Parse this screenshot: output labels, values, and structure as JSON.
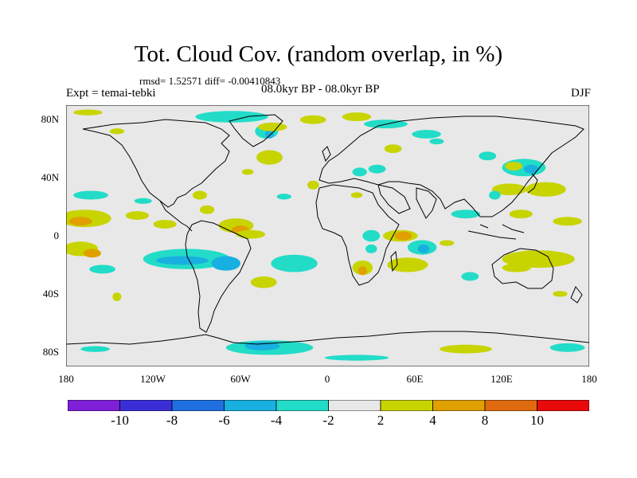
{
  "title": "Tot. Cloud Cov. (random overlap, in %)",
  "stats": "rmsd= 1.52571  diff= -0.00410843",
  "experiment": "Expt = temai-tebki",
  "period": "08.0kyr BP - 08.0kyr BP",
  "season": "DJF",
  "map": {
    "lon_range": [
      -180,
      180
    ],
    "lat_range": [
      -90,
      90
    ],
    "land_background": "#e8e8e8",
    "coastline_color": "#000000",
    "y_ticks": [
      {
        "lat": 80,
        "label": "80N"
      },
      {
        "lat": 40,
        "label": "40N"
      },
      {
        "lat": 0,
        "label": "0"
      },
      {
        "lat": -40,
        "label": "40S"
      },
      {
        "lat": -80,
        "label": "80S"
      }
    ],
    "x_ticks": [
      {
        "lon": -180,
        "label": "180"
      },
      {
        "lon": -120,
        "label": "120W"
      },
      {
        "lon": -60,
        "label": "60W"
      },
      {
        "lon": 0,
        "label": "0"
      },
      {
        "lon": 60,
        "label": "60E"
      },
      {
        "lon": 120,
        "label": "120E"
      },
      {
        "lon": 180,
        "label": "180"
      }
    ]
  },
  "colorbar": {
    "colors": [
      "#7f1fd8",
      "#3a2fd6",
      "#1f6fe0",
      "#18b0e0",
      "#22dcc8",
      "#e8e8e8",
      "#c8d400",
      "#e0a000",
      "#e06a10",
      "#e80a0a"
    ],
    "labels": [
      "-10",
      "-8",
      "-6",
      "-4",
      "-2",
      "2",
      "4",
      "8",
      "10"
    ]
  },
  "anomalies": [
    {
      "lon": -167,
      "lat": 12,
      "rx": 18,
      "ry": 6,
      "level": "2"
    },
    {
      "lon": -170,
      "lat": 10,
      "rx": 8,
      "ry": 3,
      "level": "4"
    },
    {
      "lon": -163,
      "lat": 28,
      "rx": 12,
      "ry": 3,
      "level": "-2"
    },
    {
      "lon": -127,
      "lat": 24,
      "rx": 6,
      "ry": 2,
      "level": "-2"
    },
    {
      "lon": -170,
      "lat": -9,
      "rx": 12,
      "ry": 5,
      "level": "2"
    },
    {
      "lon": -162,
      "lat": -12,
      "rx": 6,
      "ry": 3,
      "level": "4"
    },
    {
      "lon": -155,
      "lat": -23,
      "rx": 9,
      "ry": 3,
      "level": "-2"
    },
    {
      "lon": -145,
      "lat": -42,
      "rx": 3,
      "ry": 3,
      "level": "2"
    },
    {
      "lon": -165,
      "lat": 85,
      "rx": 10,
      "ry": 2,
      "level": "2"
    },
    {
      "lon": -145,
      "lat": 72,
      "rx": 5,
      "ry": 2,
      "level": "2"
    },
    {
      "lon": -131,
      "lat": 14,
      "rx": 8,
      "ry": 3,
      "level": "2"
    },
    {
      "lon": -112,
      "lat": 8,
      "rx": 8,
      "ry": 3,
      "level": "2"
    },
    {
      "lon": -97,
      "lat": -16,
      "rx": 30,
      "ry": 7,
      "level": "-2"
    },
    {
      "lon": -100,
      "lat": -17,
      "rx": 18,
      "ry": 3,
      "level": "-4"
    },
    {
      "lon": -70,
      "lat": -19,
      "rx": 10,
      "ry": 5,
      "level": "-4"
    },
    {
      "lon": -88,
      "lat": 28,
      "rx": 5,
      "ry": 3,
      "level": "2"
    },
    {
      "lon": -83,
      "lat": 18,
      "rx": 5,
      "ry": 3,
      "level": "2"
    },
    {
      "lon": -63,
      "lat": 7,
      "rx": 12,
      "ry": 5,
      "level": "2"
    },
    {
      "lon": -60,
      "lat": 4,
      "rx": 6,
      "ry": 3,
      "level": "4"
    },
    {
      "lon": -53,
      "lat": 1,
      "rx": 10,
      "ry": 3,
      "level": "2"
    },
    {
      "lon": -40,
      "lat": 54,
      "rx": 9,
      "ry": 5,
      "level": "2"
    },
    {
      "lon": -55,
      "lat": 44,
      "rx": 4,
      "ry": 2,
      "level": "2"
    },
    {
      "lon": -23,
      "lat": -19,
      "rx": 16,
      "ry": 6,
      "level": "-2"
    },
    {
      "lon": -44,
      "lat": -32,
      "rx": 9,
      "ry": 4,
      "level": "2"
    },
    {
      "lon": -30,
      "lat": 27,
      "rx": 5,
      "ry": 2,
      "level": "-2"
    },
    {
      "lon": -10,
      "lat": 35,
      "rx": 4,
      "ry": 3,
      "level": "2"
    },
    {
      "lon": -66,
      "lat": 82,
      "rx": 25,
      "ry": 4,
      "level": "-2"
    },
    {
      "lon": -42,
      "lat": 72,
      "rx": 8,
      "ry": 5,
      "level": "-2"
    },
    {
      "lon": -40,
      "lat": 70,
      "rx": 3,
      "ry": 3,
      "level": "-4"
    },
    {
      "lon": -38,
      "lat": 75,
      "rx": 10,
      "ry": 3,
      "level": "2"
    },
    {
      "lon": -10,
      "lat": 80,
      "rx": 9,
      "ry": 3,
      "level": "2"
    },
    {
      "lon": 20,
      "lat": 82,
      "rx": 10,
      "ry": 3,
      "level": "2"
    },
    {
      "lon": 40,
      "lat": 77,
      "rx": 15,
      "ry": 3,
      "level": "-2"
    },
    {
      "lon": 45,
      "lat": 60,
      "rx": 6,
      "ry": 3,
      "level": "2"
    },
    {
      "lon": 68,
      "lat": 70,
      "rx": 10,
      "ry": 3,
      "level": "-2"
    },
    {
      "lon": 22,
      "lat": 44,
      "rx": 5,
      "ry": 3,
      "level": "-2"
    },
    {
      "lon": 34,
      "lat": 46,
      "rx": 6,
      "ry": 3,
      "level": "-2"
    },
    {
      "lon": 20,
      "lat": 28,
      "rx": 4,
      "ry": 2,
      "level": "2"
    },
    {
      "lon": 30,
      "lat": 0,
      "rx": 6,
      "ry": 4,
      "level": "-2"
    },
    {
      "lon": 50,
      "lat": 0,
      "rx": 12,
      "ry": 4,
      "level": "2"
    },
    {
      "lon": 52,
      "lat": 0,
      "rx": 6,
      "ry": 3,
      "level": "4"
    },
    {
      "lon": 65,
      "lat": -8,
      "rx": 10,
      "ry": 5,
      "level": "-2"
    },
    {
      "lon": 66,
      "lat": -9,
      "rx": 4,
      "ry": 3,
      "level": "-4"
    },
    {
      "lon": 30,
      "lat": -9,
      "rx": 4,
      "ry": 3,
      "level": "-2"
    },
    {
      "lon": 24,
      "lat": -22,
      "rx": 7,
      "ry": 5,
      "level": "2"
    },
    {
      "lon": 24,
      "lat": -24,
      "rx": 3,
      "ry": 3,
      "level": "4"
    },
    {
      "lon": 55,
      "lat": -20,
      "rx": 14,
      "ry": 5,
      "level": "2"
    },
    {
      "lon": 82,
      "lat": -5,
      "rx": 5,
      "ry": 2,
      "level": "2"
    },
    {
      "lon": 75,
      "lat": 65,
      "rx": 5,
      "ry": 2,
      "level": "-2"
    },
    {
      "lon": 110,
      "lat": 55,
      "rx": 6,
      "ry": 3,
      "level": "-2"
    },
    {
      "lon": 135,
      "lat": 47,
      "rx": 15,
      "ry": 6,
      "level": "-2"
    },
    {
      "lon": 140,
      "lat": 46,
      "rx": 5,
      "ry": 3,
      "level": "-4"
    },
    {
      "lon": 128,
      "lat": 48,
      "rx": 6,
      "ry": 3,
      "level": "2"
    },
    {
      "lon": 125,
      "lat": 32,
      "rx": 12,
      "ry": 4,
      "level": "2"
    },
    {
      "lon": 150,
      "lat": 32,
      "rx": 14,
      "ry": 5,
      "level": "2"
    },
    {
      "lon": 115,
      "lat": 28,
      "rx": 4,
      "ry": 3,
      "level": "-2"
    },
    {
      "lon": 95,
      "lat": 15,
      "rx": 10,
      "ry": 3,
      "level": "-2"
    },
    {
      "lon": 133,
      "lat": 15,
      "rx": 8,
      "ry": 3,
      "level": "2"
    },
    {
      "lon": 165,
      "lat": 10,
      "rx": 10,
      "ry": 3,
      "level": "2"
    },
    {
      "lon": 145,
      "lat": -16,
      "rx": 25,
      "ry": 6,
      "level": "2"
    },
    {
      "lon": 130,
      "lat": -22,
      "rx": 10,
      "ry": 3,
      "level": "2"
    },
    {
      "lon": 98,
      "lat": -28,
      "rx": 6,
      "ry": 3,
      "level": "-2"
    },
    {
      "lon": 160,
      "lat": -40,
      "rx": 5,
      "ry": 2,
      "level": "2"
    },
    {
      "lon": -40,
      "lat": -77,
      "rx": 30,
      "ry": 5,
      "level": "-2"
    },
    {
      "lon": -45,
      "lat": -76,
      "rx": 12,
      "ry": 3,
      "level": "-4"
    },
    {
      "lon": 20,
      "lat": -84,
      "rx": 22,
      "ry": 2,
      "level": "-2"
    },
    {
      "lon": 95,
      "lat": -78,
      "rx": 18,
      "ry": 3,
      "level": "2"
    },
    {
      "lon": 165,
      "lat": -77,
      "rx": 12,
      "ry": 3,
      "level": "-2"
    },
    {
      "lon": -160,
      "lat": -78,
      "rx": 10,
      "ry": 2,
      "level": "-2"
    }
  ]
}
